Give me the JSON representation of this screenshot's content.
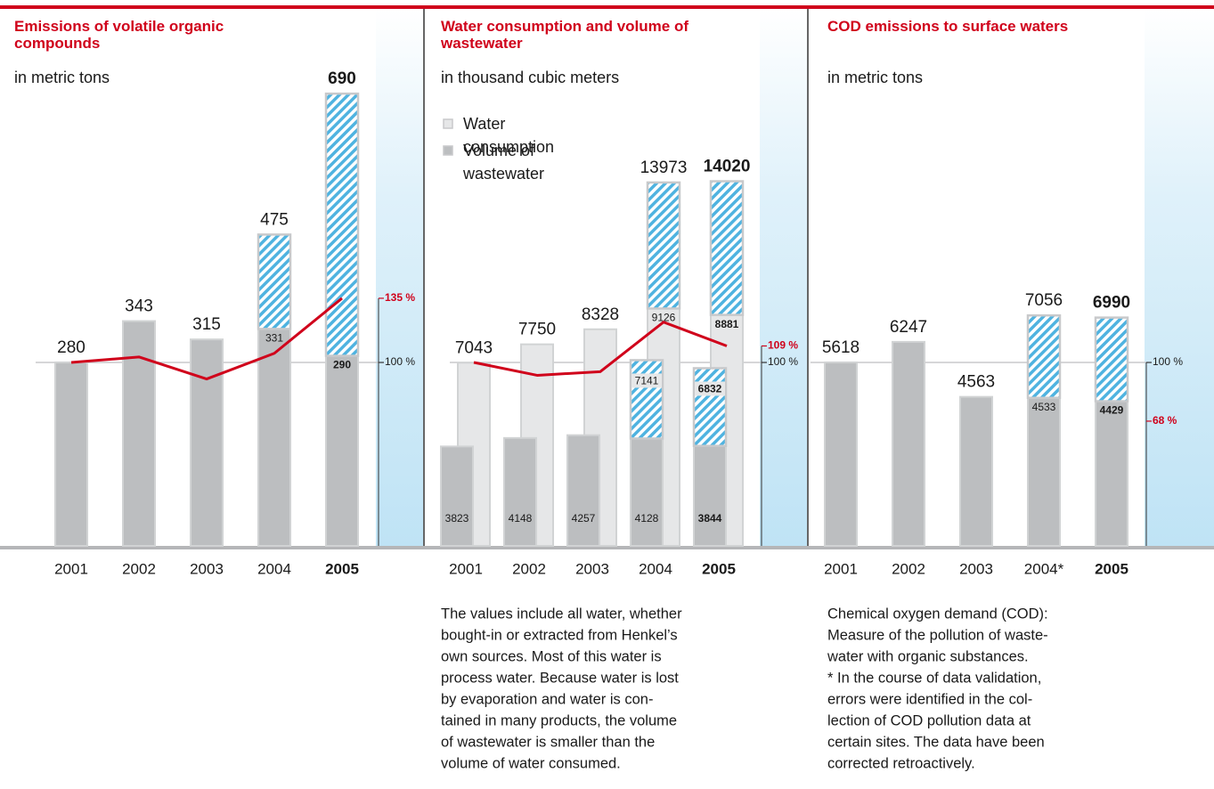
{
  "chart_data": [
    {
      "type": "bar",
      "title": "Emissions of volatile organic compounds",
      "subtitle": "in metric tons",
      "categories": [
        "2001",
        "2002",
        "2003",
        "2004",
        "2005"
      ],
      "series": [
        {
          "color": "#bcbec0",
          "values": [
            280,
            343,
            315,
            475,
            690
          ],
          "base_values": [
            null,
            null,
            null,
            331,
            290
          ]
        }
      ],
      "hatch_color": "#4fb3e0",
      "ylim": [
        0,
        750
      ],
      "index": {
        "color": "#d0021b",
        "values": [
          100,
          103,
          91,
          105,
          135
        ],
        "lim": [
          0,
          268
        ],
        "ticks": [
          {
            "value": 100,
            "label": "100 %"
          },
          {
            "value": 135,
            "label": "135 %"
          }
        ]
      }
    },
    {
      "type": "bar",
      "title": "Water consumption and volume of wastewater",
      "subtitle": "in thousand cubic meters",
      "categories": [
        "2001",
        "2002",
        "2003",
        "2004",
        "2005"
      ],
      "series": [
        {
          "name": "Water consumption",
          "color": "#e6e7e8",
          "values": [
            7043,
            7750,
            8328,
            13973,
            14020
          ],
          "base_values": [
            null,
            null,
            null,
            9126,
            8881
          ]
        },
        {
          "name": "Volume of wastewater",
          "color": "#bcbec0",
          "values": [
            3823,
            4148,
            4257,
            7141,
            6832
          ],
          "base_values": [
            null,
            null,
            null,
            4128,
            3844
          ]
        }
      ],
      "hatch_color": "#4fb3e0",
      "ylim": [
        0,
        18900
      ],
      "index": {
        "color": "#d0021b",
        "values": [
          100,
          93,
          95,
          122,
          109
        ],
        "lim": [
          0,
          268
        ],
        "ticks": [
          {
            "value": 100,
            "label": "100 %"
          },
          {
            "value": 109,
            "label": "109 %"
          }
        ]
      },
      "note": [
        "The values include all water, whether",
        "bought-in or extracted from Henkel’s",
        "own sources. Most of this water is",
        "process water. Because water is lost",
        "by evaporation and water is con-",
        "tained in many products, the volume",
        "of wastewater is smaller than the",
        "volume of water consumed."
      ]
    },
    {
      "type": "bar",
      "title": "COD emissions to surface waters",
      "subtitle": "in metric tons",
      "categories": [
        "2001",
        "2002",
        "2003",
        "2004*",
        "2005"
      ],
      "series": [
        {
          "color": "#bcbec0",
          "values": [
            5618,
            6247,
            4563,
            7056,
            6990
          ],
          "base_values": [
            null,
            null,
            null,
            4533,
            4429
          ]
        }
      ],
      "hatch_color": "#4fb3e0",
      "ylim": [
        0,
        15050
      ],
      "index": {
        "color": "#d0021b",
        "lim": [
          0,
          268
        ],
        "ticks": [
          {
            "value": 100,
            "label": "100 %"
          },
          {
            "value": 68,
            "label": "68 %"
          }
        ]
      },
      "note": [
        "Chemical oxygen demand (COD):",
        "Measure of the pollution of waste-",
        "water with organic substances.",
        "* In the course of data validation,",
        "errors were identified in the col-",
        "lection of COD pollution data at",
        "certain sites. The data have been",
        "corrected retroactively."
      ]
    }
  ]
}
